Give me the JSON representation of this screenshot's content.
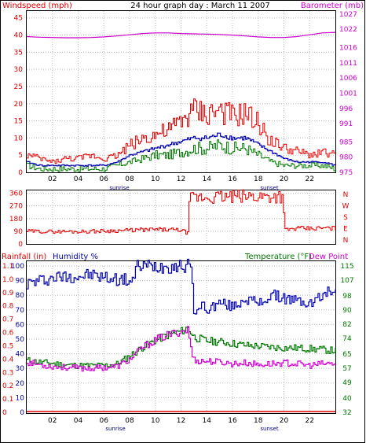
{
  "header": {
    "title": "24 hour graph day : March 11 2007",
    "left_label": "Windspeed (mph)",
    "right_label": "Barometer (mb)"
  },
  "colors": {
    "wind": "#dd0000",
    "gust": "#dd0000",
    "avg": "#0000aa",
    "green": "#007700",
    "baro": "#cc00cc",
    "axis": "#000000",
    "grid": "#bbbbbb",
    "dew": "#cc00cc",
    "temp": "#007700",
    "hum": "#0000aa",
    "rain": "#dd0000"
  },
  "chart_data": [
    {
      "type": "line",
      "name": "wind-barometer",
      "x_ticks": [
        "02",
        "04",
        "06",
        "08",
        "10",
        "12",
        "14",
        "16",
        "18",
        "20",
        "22"
      ],
      "x_markers": [
        "sunrise",
        "sunset"
      ],
      "left_axis": {
        "label": "Windspeed (mph)",
        "ticks": [
          0,
          5,
          10,
          15,
          20,
          25,
          30,
          35,
          40,
          45
        ],
        "ylim": [
          0,
          47
        ]
      },
      "right_axis": {
        "label": "Barometer (mb)",
        "ticks": [
          975,
          980,
          985,
          991,
          996,
          1001,
          1006,
          1011,
          1016,
          1022,
          1027
        ],
        "ylim": [
          975,
          1028
        ]
      },
      "barometer": {
        "x": [
          0,
          1,
          2,
          3,
          4,
          5,
          6,
          7,
          8,
          9,
          10,
          11,
          12,
          13,
          14,
          15,
          16,
          17,
          18,
          19,
          20,
          21,
          22,
          23,
          24
        ],
        "y": [
          1019.6,
          1019.4,
          1019.3,
          1019.2,
          1019.2,
          1019.3,
          1019.5,
          1019.8,
          1020.2,
          1020.6,
          1020.8,
          1020.8,
          1020.6,
          1020.5,
          1020.4,
          1020.3,
          1020.1,
          1019.8,
          1019.5,
          1019.3,
          1019.3,
          1019.6,
          1020.2,
          1020.8,
          1021.0
        ]
      },
      "gust": {
        "x": [
          0,
          1,
          2,
          3,
          4,
          5,
          6,
          7,
          8,
          9,
          10,
          11,
          12,
          13,
          14,
          15,
          16,
          17,
          18,
          19,
          20,
          21,
          22,
          23,
          24
        ],
        "y": [
          5,
          4,
          3,
          4,
          4,
          5,
          4,
          5,
          8,
          10,
          11,
          12,
          15,
          18,
          17,
          18,
          16,
          17,
          14,
          9,
          7,
          6,
          5,
          6,
          5
        ]
      },
      "average": {
        "x": [
          0,
          1,
          2,
          3,
          4,
          5,
          6,
          7,
          8,
          9,
          10,
          11,
          12,
          13,
          14,
          15,
          16,
          17,
          18,
          19,
          20,
          21,
          22,
          23,
          24
        ],
        "y": [
          3,
          2,
          2,
          2,
          2,
          2,
          2,
          3,
          5,
          6,
          7,
          8,
          9,
          10,
          10,
          11,
          10,
          10,
          8,
          6,
          4,
          3,
          3,
          3,
          2
        ]
      },
      "speed": {
        "x": [
          0,
          1,
          2,
          3,
          4,
          5,
          6,
          7,
          8,
          9,
          10,
          11,
          12,
          13,
          14,
          15,
          16,
          17,
          18,
          19,
          20,
          21,
          22,
          23,
          24
        ],
        "y": [
          2,
          1,
          1,
          1,
          1,
          1,
          1,
          2,
          3,
          4,
          5,
          5,
          6,
          7,
          7,
          8,
          7,
          7,
          5,
          3,
          2,
          2,
          2,
          2,
          1
        ]
      }
    },
    {
      "type": "line",
      "name": "wind-direction",
      "left_axis": {
        "ticks": [
          0,
          90,
          180,
          270,
          360
        ],
        "ylim": [
          0,
          380
        ]
      },
      "right_axis": {
        "ticks": [
          "N",
          "W",
          "S",
          "E",
          "N"
        ]
      },
      "direction": {
        "x": [
          0,
          2,
          4,
          6,
          7,
          8,
          9,
          10,
          11,
          12,
          12.5,
          12.6,
          13,
          14,
          15,
          16,
          17,
          18,
          19,
          19.9,
          20,
          21,
          22,
          23,
          24
        ],
        "y": [
          90,
          88,
          88,
          92,
          95,
          97,
          100,
          102,
          100,
          98,
          75,
          315,
          325,
          330,
          332,
          334,
          336,
          338,
          340,
          342,
          100,
          110,
          108,
          112,
          110
        ]
      }
    },
    {
      "type": "line",
      "name": "temperature-humidity",
      "x_ticks": [
        "02",
        "04",
        "06",
        "08",
        "10",
        "12",
        "14",
        "16",
        "18",
        "20",
        "22"
      ],
      "x_markers": [
        "sunrise",
        "sunset"
      ],
      "labels": {
        "rain": "Rainfall (in)",
        "hum": "Humidity %",
        "temp": "Temperature (°F)",
        "dew": "Dew Point"
      },
      "rain_axis": {
        "ticks": [
          "0",
          "0.1",
          "0.2",
          "0.3",
          "0.4",
          "0.5",
          "0.6",
          "0.7",
          "0.8",
          "0.9",
          "1.0",
          "1.1"
        ]
      },
      "hum_axis": {
        "ticks": [
          0,
          10,
          20,
          30,
          40,
          50,
          60,
          70,
          80,
          90,
          100
        ],
        "ylim": [
          0,
          100
        ]
      },
      "temp_axis": {
        "ticks": [
          32,
          40,
          49,
          57,
          65,
          74,
          82,
          90,
          98,
          107,
          115
        ],
        "ylim": [
          32,
          115
        ]
      },
      "humidity": {
        "x": [
          0,
          1,
          2,
          3,
          4,
          5,
          6,
          7,
          8,
          8.4,
          8.5,
          10,
          12,
          12.8,
          12.9,
          13.2,
          13.6,
          14,
          15,
          16,
          17,
          18,
          19,
          20,
          21,
          22,
          23,
          23.8
        ],
        "y": [
          88,
          90,
          92,
          93,
          93,
          94,
          92,
          91,
          90,
          92,
          100,
          100,
          100,
          100,
          72,
          68,
          74,
          70,
          75,
          72,
          78,
          74,
          80,
          78,
          76,
          74,
          80,
          84
        ]
      },
      "temperature": {
        "x": [
          0,
          1,
          2,
          3,
          4,
          5,
          6,
          7,
          8,
          9,
          10,
          11,
          12,
          12.5,
          13,
          14,
          15,
          16,
          17,
          18,
          19,
          20,
          21,
          22,
          23,
          23.8
        ],
        "y": [
          61.5,
          60.5,
          59.8,
          58.8,
          58.5,
          58.5,
          58.5,
          59.5,
          64,
          69,
          73,
          76,
          78,
          80,
          74.5,
          72.5,
          72,
          71,
          70,
          69.5,
          69,
          68.5,
          68.5,
          68,
          67.5,
          67
        ]
      },
      "dew_point": {
        "x": [
          0,
          1,
          2,
          3,
          4,
          5,
          6,
          7,
          8,
          9,
          10,
          11,
          12,
          12.5,
          12.9,
          13.5,
          14,
          15,
          16,
          17,
          18,
          19,
          20,
          21,
          22,
          23,
          23.8
        ],
        "y": [
          60.5,
          59,
          58,
          57.5,
          57,
          57,
          57.5,
          58,
          62,
          69,
          73,
          76,
          78,
          79,
          62,
          61,
          61,
          60.5,
          59.5,
          60,
          59,
          59.5,
          60,
          59.5,
          58.5,
          59.5,
          59.5
        ]
      },
      "rainfall": {
        "x": [
          0,
          24
        ],
        "y": [
          0,
          0
        ]
      }
    }
  ]
}
